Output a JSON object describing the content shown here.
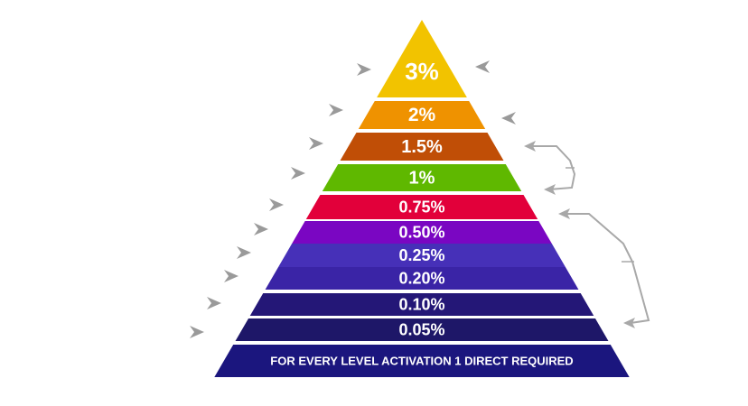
{
  "pyramid": {
    "levels": [
      {
        "label": "3%",
        "color": "#f2c300",
        "text_color": "#111111"
      },
      {
        "label": "2%",
        "color": "#ef9200",
        "text_color": "#ffffff"
      },
      {
        "label": "1.5%",
        "color": "#c04e06",
        "text_color": "#ffffff"
      },
      {
        "label": "1%",
        "color": "#5fb800",
        "text_color": "#ffffff"
      },
      {
        "label": "0.75%",
        "color": "#e2003a",
        "text_color": "#ffffff"
      },
      {
        "label": "0.50%",
        "color": "#7a06c2",
        "text_color": "#ffffff"
      },
      {
        "label": "0.25%",
        "color": "#4630b8",
        "text_color": "#ffffff"
      },
      {
        "label": "0.20%",
        "color": "#3a24a6",
        "text_color": "#ffffff"
      },
      {
        "label": "0.10%",
        "color": "#241777",
        "text_color": "#ffffff"
      },
      {
        "label": "0.05%",
        "color": "#1e1768",
        "text_color": "#ffffff"
      }
    ],
    "base": {
      "label": "FOR EVERY LEVEL ACTIVATION 1 DIRECT REQUIRED",
      "color": "#1b167e",
      "text_color": "#ffffff"
    },
    "arrow_color": "#9a9a9a",
    "bracket_color": "#a8a8a8"
  }
}
